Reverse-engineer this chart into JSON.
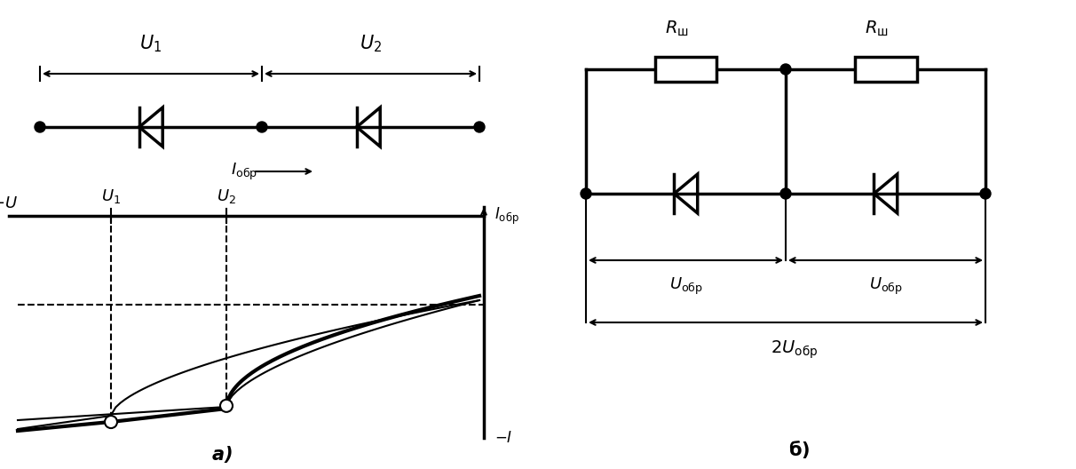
{
  "bg_color": "#ffffff",
  "line_color": "#000000",
  "lw": 2.5,
  "lw_thin": 1.5,
  "fig_width": 12.12,
  "fig_height": 5.28,
  "label_a": "a)",
  "label_b": "б)",
  "title_font": 16,
  "annotation_font": 13
}
